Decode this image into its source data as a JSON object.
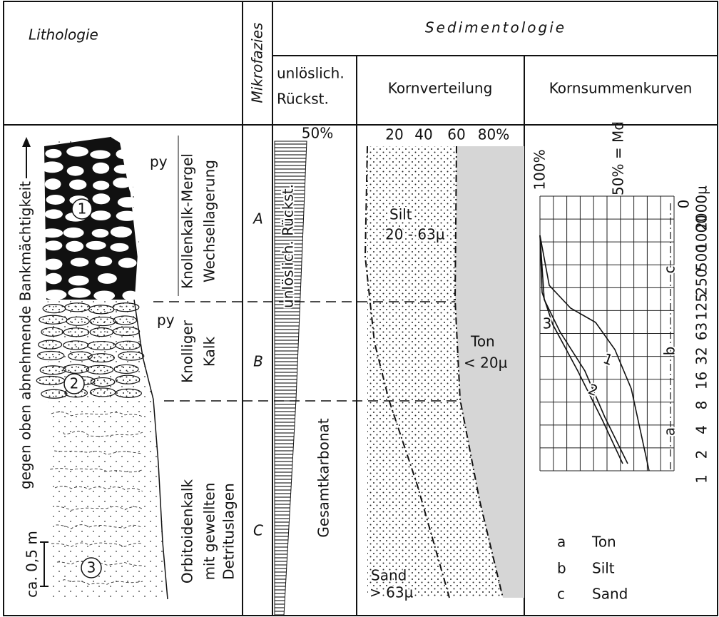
{
  "lithology": {
    "title": "Lithologie",
    "thickness_label": "gegen oben abnehmende Bankmächtigkeit",
    "scale_label": "ca. 0,5 m",
    "pyrite_labels": [
      "py",
      "py"
    ],
    "bed_markers": [
      "1",
      "2",
      "3"
    ],
    "units": [
      {
        "name": "Knollenkalk-Mergel",
        "detail": "Wechsellagerung"
      },
      {
        "name": "Knolliger",
        "detail": "Kalk"
      },
      {
        "name": "Orbitoidenkalk",
        "detail": "mit gewellten",
        "detail2": "Detrituslagen"
      }
    ]
  },
  "microfacies": {
    "title": "Mikrofazies",
    "zones": [
      "A",
      "B",
      "C"
    ]
  },
  "sedimentology": {
    "title": "Sedimentologie",
    "insoluble": {
      "header": [
        "unlöslich.",
        "Rückst."
      ],
      "scale": "50%",
      "labels": [
        "unlöslich. Rückst.",
        "Gesamtkarbonat"
      ]
    },
    "grain_distribution": {
      "header": "Kornverteilung",
      "scale": [
        "20",
        "40",
        "60",
        "80%"
      ],
      "labels": [
        {
          "name": "Silt",
          "range": "20 - 63µ"
        },
        {
          "name": "Ton",
          "range": "< 20µ"
        },
        {
          "name": "Sand",
          "range": "> 63µ"
        }
      ]
    },
    "cumulative": {
      "header": "Kornsummenkurven",
      "top_labels": [
        "100%",
        "50% = Md",
        "0"
      ],
      "sizes": [
        "2000µ",
        "1000",
        "500",
        "250",
        "125",
        "63",
        "32",
        "16",
        "8",
        "4",
        "2",
        "1"
      ],
      "fractions": [
        "c",
        "b",
        "a"
      ],
      "curves": [
        "1",
        "2",
        "3"
      ],
      "legend": [
        {
          "key": "a",
          "label": "Ton"
        },
        {
          "key": "b",
          "label": "Silt"
        },
        {
          "key": "c",
          "label": "Sand"
        }
      ]
    }
  }
}
